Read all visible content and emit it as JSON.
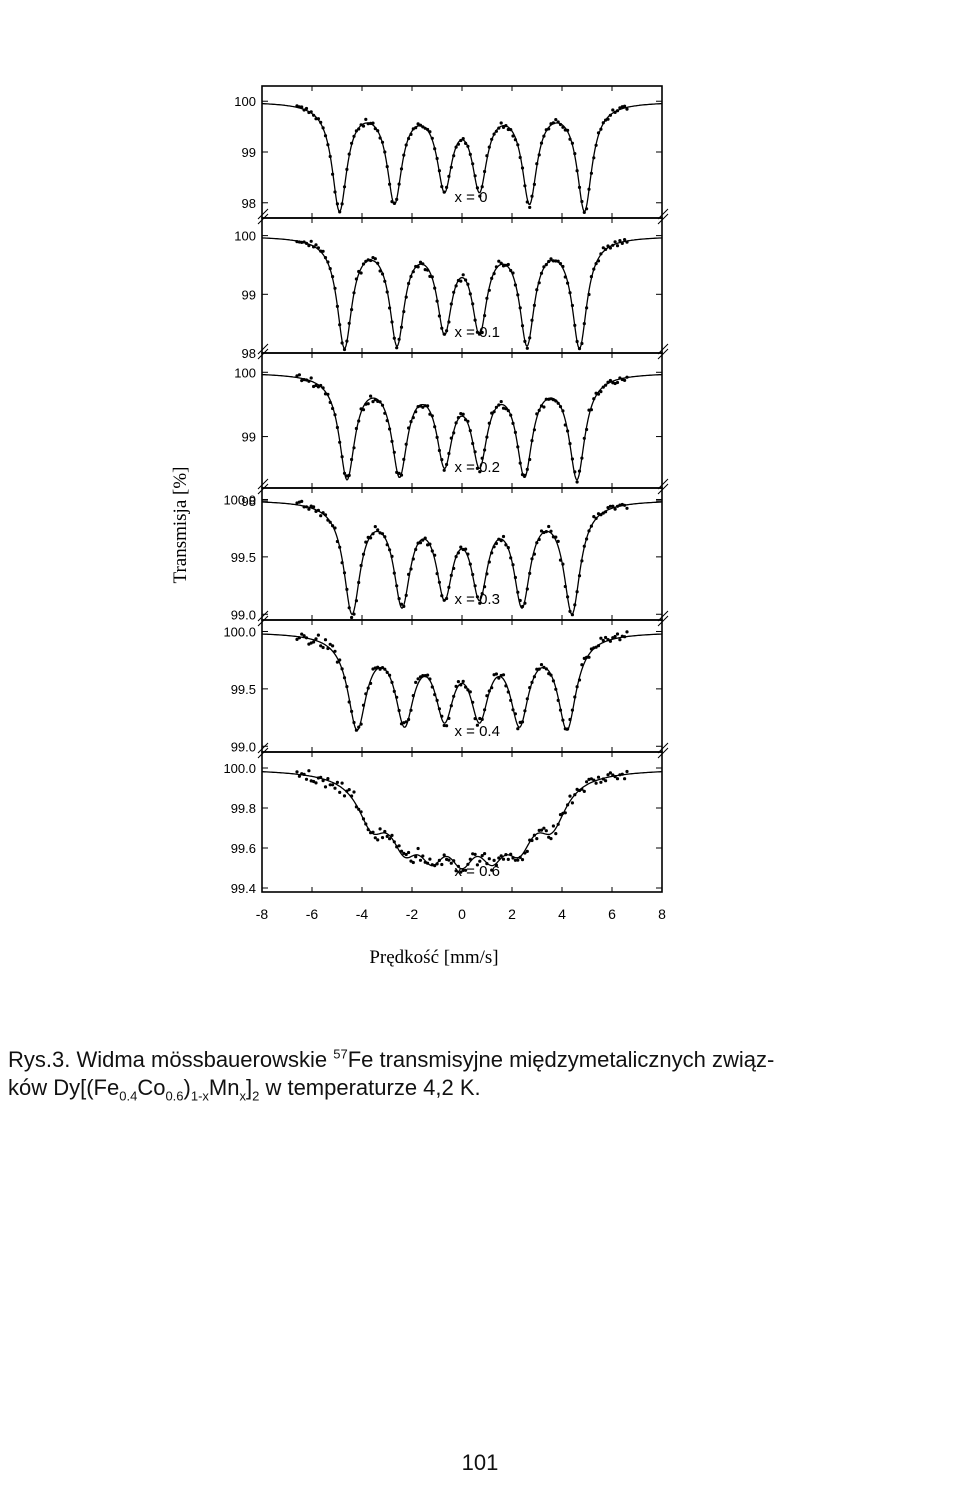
{
  "chart_data": {
    "type": "scatter",
    "xlabel": "Prędkość [mm/s]",
    "ylabel": "Transmisja [%]",
    "xlim": [
      -8,
      8
    ],
    "xticks": [
      "-8",
      "-6",
      "-4",
      "-2",
      "0",
      "2",
      "4",
      "6",
      "8"
    ],
    "panels": [
      {
        "label": "x = 0",
        "ylim": [
          97.7,
          100.3
        ],
        "yticks": [
          "100",
          "99",
          "98"
        ],
        "lines": [
          -4.9,
          -2.7,
          -0.7,
          0.7,
          2.7,
          4.9
        ],
        "width": 0.36,
        "depths": [
          2.1,
          1.9,
          1.6,
          1.6,
          1.9,
          2.1
        ],
        "noise": 0.06
      },
      {
        "label": "x = 0.1",
        "ylim": [
          98.0,
          100.3
        ],
        "yticks": [
          "100",
          "99",
          "98"
        ],
        "lines": [
          -4.7,
          -2.6,
          -0.7,
          0.7,
          2.6,
          4.7
        ],
        "width": 0.36,
        "depths": [
          1.85,
          1.75,
          1.5,
          1.5,
          1.75,
          1.85
        ],
        "noise": 0.06
      },
      {
        "label": "x = 0.2",
        "ylim": [
          98.2,
          100.3
        ],
        "yticks": [
          "100",
          "99",
          "98"
        ],
        "lines": [
          -4.6,
          -2.5,
          -0.7,
          0.7,
          2.5,
          4.6
        ],
        "width": 0.38,
        "depths": [
          1.6,
          1.5,
          1.3,
          1.3,
          1.5,
          1.6
        ],
        "noise": 0.06
      },
      {
        "label": "x = 0.3",
        "ylim": [
          98.95,
          100.1
        ],
        "yticks": [
          "100.0",
          "99.5",
          "99.0"
        ],
        "lines": [
          -4.4,
          -2.4,
          -0.7,
          0.7,
          2.4,
          4.4
        ],
        "width": 0.4,
        "depths": [
          0.95,
          0.85,
          0.75,
          0.75,
          0.85,
          0.95
        ],
        "noise": 0.04
      },
      {
        "label": "x = 0.4",
        "ylim": [
          98.95,
          100.1
        ],
        "yticks": [
          "100.0",
          "99.5",
          "99.0"
        ],
        "lines": [
          -4.2,
          -2.3,
          -0.7,
          0.7,
          2.3,
          4.2
        ],
        "width": 0.45,
        "depths": [
          0.8,
          0.72,
          0.65,
          0.65,
          0.72,
          0.8
        ],
        "noise": 0.05
      },
      {
        "label": "x = 0.6",
        "ylim": [
          99.38,
          100.08
        ],
        "yticks": [
          "100.0",
          "99.8",
          "99.6",
          "99.4"
        ],
        "lines": [
          -3.6,
          -2.3,
          -1.2,
          0.0,
          1.2,
          2.3,
          3.6
        ],
        "width": 0.7,
        "depths": [
          0.22,
          0.27,
          0.28,
          0.3,
          0.28,
          0.27,
          0.22
        ],
        "noise": 0.035
      }
    ]
  },
  "caption": {
    "part1": "Rys.3. Widma mössbauerowskie ",
    "sup": "57",
    "part2": "Fe transmisyjne międzymetalicznych związ-",
    "line2a": "ków Dy[(Fe",
    "sub1": "0.4",
    "line2b": "Co",
    "sub2": "0.6",
    "line2c": ")",
    "sub3": "1-x",
    "line2d": "Mn",
    "sub4": "x",
    "line2e": "]",
    "sub5": "2",
    "line2f": " w temperaturze 4,2 K."
  },
  "page_number": "101"
}
